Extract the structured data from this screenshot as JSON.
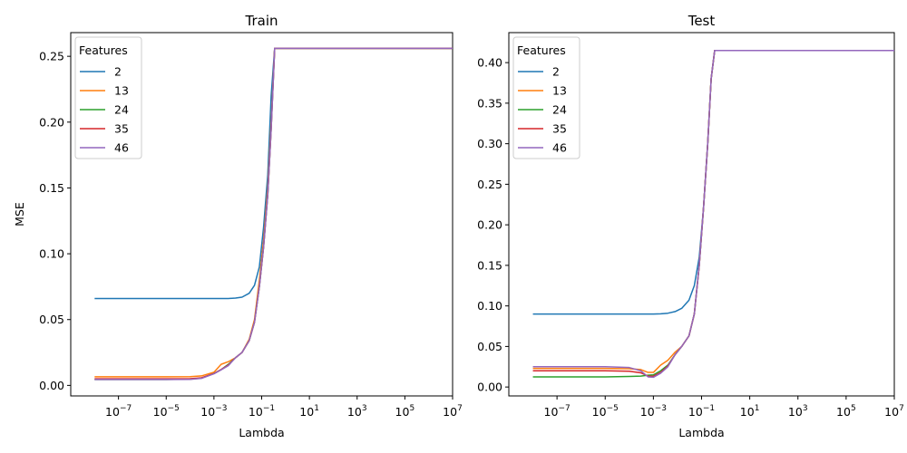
{
  "chart_data": [
    {
      "type": "line",
      "title": "Train",
      "xlabel": "Lambda",
      "ylabel": "MSE",
      "xscale": "log",
      "xlim": [
        1e-09,
        10000000.0
      ],
      "ylim": [
        -0.008,
        0.268
      ],
      "yticks": [
        "0.00",
        "0.05",
        "0.10",
        "0.15",
        "0.20",
        "0.25"
      ],
      "ytick_values": [
        0,
        0.05,
        0.1,
        0.15,
        0.2,
        0.25
      ],
      "xticks_exponents": [
        "-7",
        "-5",
        "-3",
        "-1",
        "1",
        "3",
        "5",
        "7"
      ],
      "xtick_base": "10",
      "legend": {
        "title": "Features",
        "placement": "upper-left"
      },
      "x": [
        1e-08,
        1e-07,
        1e-06,
        1e-05,
        0.0001,
        0.0003,
        0.001,
        0.002,
        0.004,
        0.008,
        0.015,
        0.03,
        0.05,
        0.08,
        0.12,
        0.18,
        0.25,
        0.35,
        0.4,
        1,
        10,
        100,
        1000.0,
        10000.0,
        100000.0,
        1000000.0,
        10000000.0
      ],
      "series": [
        {
          "name": "2",
          "color": "#1f77b4",
          "values": [
            0.066,
            0.066,
            0.066,
            0.066,
            0.066,
            0.066,
            0.066,
            0.066,
            0.066,
            0.0663,
            0.067,
            0.07,
            0.076,
            0.09,
            0.12,
            0.16,
            0.22,
            0.256,
            0.256,
            0.256,
            0.256,
            0.256,
            0.256,
            0.256,
            0.256,
            0.256,
            0.256
          ]
        },
        {
          "name": "13",
          "color": "#ff7f0e",
          "values": [
            0.0065,
            0.0065,
            0.0065,
            0.0065,
            0.0066,
            0.0072,
            0.01,
            0.016,
            0.018,
            0.021,
            0.025,
            0.035,
            0.05,
            0.08,
            0.11,
            0.15,
            0.2,
            0.256,
            0.256,
            0.256,
            0.256,
            0.256,
            0.256,
            0.256,
            0.256,
            0.256,
            0.256
          ]
        },
        {
          "name": "24",
          "color": "#2ca02c",
          "values": [
            0.0045,
            0.0045,
            0.0045,
            0.0045,
            0.0047,
            0.0055,
            0.009,
            0.012,
            0.016,
            0.021,
            0.025,
            0.034,
            0.048,
            0.075,
            0.105,
            0.145,
            0.195,
            0.256,
            0.256,
            0.256,
            0.256,
            0.256,
            0.256,
            0.256,
            0.256,
            0.256,
            0.256
          ]
        },
        {
          "name": "35",
          "color": "#d62728",
          "values": [
            0.005,
            0.005,
            0.005,
            0.005,
            0.0051,
            0.0058,
            0.009,
            0.012,
            0.0155,
            0.021,
            0.025,
            0.034,
            0.048,
            0.075,
            0.105,
            0.145,
            0.195,
            0.256,
            0.256,
            0.256,
            0.256,
            0.256,
            0.256,
            0.256,
            0.256,
            0.256,
            0.256
          ]
        },
        {
          "name": "46",
          "color": "#9467bd",
          "values": [
            0.0045,
            0.0045,
            0.0045,
            0.0045,
            0.0046,
            0.0053,
            0.0088,
            0.0118,
            0.015,
            0.021,
            0.025,
            0.034,
            0.048,
            0.075,
            0.105,
            0.145,
            0.195,
            0.256,
            0.256,
            0.256,
            0.256,
            0.256,
            0.256,
            0.256,
            0.256,
            0.256,
            0.256
          ]
        }
      ]
    },
    {
      "type": "line",
      "title": "Test",
      "xlabel": "Lambda",
      "ylabel": "",
      "xscale": "log",
      "xlim": [
        1e-09,
        10000000.0
      ],
      "ylim": [
        -0.011,
        0.437
      ],
      "yticks": [
        "0.00",
        "0.05",
        "0.10",
        "0.15",
        "0.20",
        "0.25",
        "0.30",
        "0.35",
        "0.40"
      ],
      "ytick_values": [
        0,
        0.05,
        0.1,
        0.15,
        0.2,
        0.25,
        0.3,
        0.35,
        0.4
      ],
      "xticks_exponents": [
        "-7",
        "-5",
        "-3",
        "-1",
        "1",
        "3",
        "5",
        "7"
      ],
      "xtick_base": "10",
      "legend": {
        "title": "Features",
        "placement": "upper-left"
      },
      "x": [
        1e-08,
        1e-07,
        1e-06,
        1e-05,
        0.0001,
        0.0003,
        0.0006,
        0.001,
        0.002,
        0.004,
        0.008,
        0.015,
        0.03,
        0.05,
        0.08,
        0.12,
        0.18,
        0.25,
        0.35,
        0.4,
        1,
        10,
        100,
        1000.0,
        10000.0,
        100000.0,
        1000000.0,
        10000000.0
      ],
      "series": [
        {
          "name": "2",
          "color": "#1f77b4",
          "values": [
            0.09,
            0.09,
            0.09,
            0.09,
            0.09,
            0.09,
            0.09,
            0.09,
            0.0902,
            0.091,
            0.093,
            0.097,
            0.107,
            0.125,
            0.16,
            0.22,
            0.3,
            0.38,
            0.415,
            0.415,
            0.415,
            0.415,
            0.415,
            0.415,
            0.415,
            0.415,
            0.415,
            0.415
          ]
        },
        {
          "name": "13",
          "color": "#ff7f0e",
          "values": [
            0.023,
            0.023,
            0.023,
            0.023,
            0.0225,
            0.0215,
            0.018,
            0.018,
            0.027,
            0.033,
            0.043,
            0.05,
            0.063,
            0.09,
            0.15,
            0.22,
            0.3,
            0.38,
            0.415,
            0.415,
            0.415,
            0.415,
            0.415,
            0.415,
            0.415,
            0.415,
            0.415,
            0.415
          ]
        },
        {
          "name": "24",
          "color": "#2ca02c",
          "values": [
            0.0125,
            0.0125,
            0.0125,
            0.0125,
            0.013,
            0.0135,
            0.0145,
            0.015,
            0.02,
            0.027,
            0.04,
            0.05,
            0.063,
            0.09,
            0.15,
            0.22,
            0.3,
            0.38,
            0.415,
            0.415,
            0.415,
            0.415,
            0.415,
            0.415,
            0.415,
            0.415,
            0.415,
            0.415
          ]
        },
        {
          "name": "35",
          "color": "#d62728",
          "values": [
            0.02,
            0.02,
            0.02,
            0.02,
            0.0195,
            0.0175,
            0.0135,
            0.0132,
            0.018,
            0.026,
            0.04,
            0.05,
            0.063,
            0.09,
            0.15,
            0.22,
            0.3,
            0.38,
            0.415,
            0.415,
            0.415,
            0.415,
            0.415,
            0.415,
            0.415,
            0.415,
            0.415,
            0.415
          ]
        },
        {
          "name": "46",
          "color": "#9467bd",
          "values": [
            0.025,
            0.025,
            0.025,
            0.025,
            0.024,
            0.02,
            0.0125,
            0.012,
            0.017,
            0.025,
            0.04,
            0.05,
            0.063,
            0.09,
            0.15,
            0.22,
            0.3,
            0.38,
            0.415,
            0.415,
            0.415,
            0.415,
            0.415,
            0.415,
            0.415,
            0.415,
            0.415,
            0.415
          ]
        }
      ]
    }
  ]
}
